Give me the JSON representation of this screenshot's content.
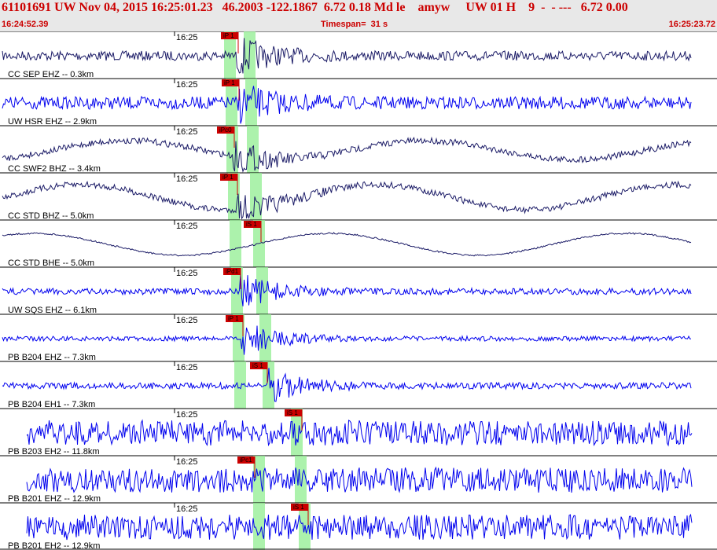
{
  "header": {
    "title": "61101691 UW Nov 04, 2015 16:25:01.23   46.2003 -122.1867  6.72 0.18 Md le    amyw     UW 01 H    9  -  - ---   6.72 0.00",
    "start_time": "16:24:52.39",
    "timespan": "Timespan=  31 s",
    "end_time": "16:25:23.72"
  },
  "colors": {
    "header_bg": "#e8e8e8",
    "header_text": "#cc0000",
    "trace_blue": "#0000ee",
    "trace_dark": "#1a1a66",
    "pick": "#cc0000",
    "window": "#90ee90"
  },
  "traces": [
    {
      "label": "CC SEP EHZ -- 0.3km",
      "time_mark": "16:25",
      "color": "dark",
      "amp": 6,
      "burst": 1,
      "wave": 0,
      "pick_label": "iP 1",
      "windows": [
        [
          285,
          300
        ],
        [
          310,
          325
        ]
      ]
    },
    {
      "label": "UW HSR EHZ -- 2.9km",
      "time_mark": "16:25",
      "color": "blue",
      "amp": 8,
      "burst": 1,
      "wave": 0,
      "pick_label": "iP 1",
      "windows": [
        [
          287,
          302
        ],
        [
          312,
          327
        ]
      ]
    },
    {
      "label": "CC SWF2 BHZ -- 3.4km",
      "time_mark": "16:25",
      "color": "dark",
      "amp": 4,
      "burst": 1,
      "wave": 12,
      "pick_label": "iPc0",
      "windows": [
        [
          288,
          303
        ],
        [
          314,
          329
        ]
      ]
    },
    {
      "label": "CC STD BHZ -- 5.0km",
      "time_mark": "16:25",
      "color": "dark",
      "amp": 4,
      "burst": 1,
      "wave": 16,
      "pick_label": "iP 1",
      "windows": [
        [
          290,
          305
        ],
        [
          318,
          333
        ]
      ]
    },
    {
      "label": "CC STD BHE -- 5.0km",
      "time_mark": "16:25",
      "color": "dark",
      "amp": 1,
      "burst": 0,
      "wave": 14,
      "pick_label": "iS 1",
      "windows": [
        [
          292,
          307
        ],
        [
          322,
          337
        ]
      ]
    },
    {
      "label": "UW SQS EHZ -- 6.1km",
      "time_mark": "16:25",
      "color": "blue",
      "amp": 4,
      "burst": 1,
      "wave": 0,
      "pick_label": "iPd1",
      "windows": [
        [
          294,
          309
        ],
        [
          326,
          341
        ]
      ]
    },
    {
      "label": "PB B204 EHZ -- 7.3km",
      "time_mark": "16:25",
      "color": "blue",
      "amp": 3,
      "burst": 1,
      "wave": 0,
      "pick_label": "iP 1",
      "windows": [
        [
          296,
          311
        ],
        [
          330,
          345
        ]
      ]
    },
    {
      "label": "PB B204 EH1 -- 7.3km",
      "time_mark": "16:25",
      "color": "blue",
      "amp": 4,
      "burst": 1,
      "wave": 0,
      "pick_label": "iS 1",
      "windows": [
        [
          298,
          313
        ],
        [
          334,
          349
        ]
      ]
    },
    {
      "label": "PB B203 EH2 -- 11.8km",
      "time_mark": "16:25",
      "color": "blue",
      "amp": 16,
      "burst": 0,
      "wave": 0,
      "pick_label": "iS 1",
      "windows": [
        [
          370,
          385
        ]
      ]
    },
    {
      "label": "PB B201 EHZ -- 12.9km",
      "time_mark": "16:25",
      "color": "blue",
      "amp": 16,
      "burst": 0,
      "wave": 0,
      "pick_label": "iPc1",
      "windows": [
        [
          322,
          337
        ],
        [
          375,
          390
        ]
      ]
    },
    {
      "label": "PB B201 EH2 -- 12.9km",
      "time_mark": "16:25",
      "color": "blue",
      "amp": 16,
      "burst": 0,
      "wave": 0,
      "pick_label": "iS 1",
      "windows": [
        [
          322,
          337
        ],
        [
          380,
          395
        ]
      ]
    }
  ]
}
